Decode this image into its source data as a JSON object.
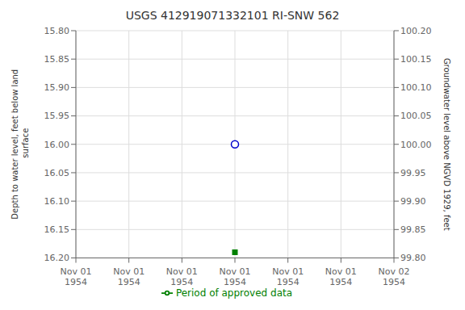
{
  "chart_data": {
    "type": "scatter",
    "title": "USGS 412919071332101 RI-SNW  562",
    "y_label": "Depth to water level, feet below land\n surface",
    "y2_label": "Groundwater level above NGVD 1929, feet",
    "categories": [
      "Nov 01\n1954",
      "Nov 01\n1954",
      "Nov 01\n1954",
      "Nov 01\n1954",
      "Nov 01\n1954",
      "Nov 01\n1954",
      "Nov 02\n1954"
    ],
    "series": [
      {
        "color": "#0000cc",
        "marker": "open_circle",
        "values": [
          null,
          null,
          null,
          16.0,
          null,
          null,
          null
        ]
      },
      {
        "color": "#008000",
        "marker": "square",
        "values": [
          null,
          null,
          null,
          16.19,
          null,
          null,
          null
        ]
      },
      {
        "name": "Period of approved data",
        "type": "line",
        "color": "#008000",
        "values": [
          null,
          null,
          null,
          null,
          null,
          null,
          null
        ]
      }
    ],
    "ylim": [
      16.2,
      15.8
    ],
    "yticks": [
      {
        "value": 15.8,
        "label": "15.80"
      },
      15.85,
      {
        "value": 15.9,
        "label": "15.90"
      },
      15.95,
      {
        "value": 16.0,
        "label": "16.00"
      },
      16.05,
      {
        "value": 16.1,
        "label": "16.10"
      },
      16.15,
      {
        "value": 16.2,
        "label": "16.20"
      }
    ],
    "y2lim": [
      99.8,
      100.2
    ],
    "y2ticks": [
      {
        "value": 100.2,
        "label": "100.20"
      },
      100.15,
      {
        "value": 100.1,
        "label": "100.10"
      },
      100.05,
      {
        "value": 100.0,
        "label": "100.00"
      },
      99.95,
      {
        "value": 99.9,
        "label": "99.90"
      },
      99.85,
      {
        "value": 99.8,
        "label": "99.80"
      }
    ],
    "grid": true,
    "legend": "bottom"
  }
}
